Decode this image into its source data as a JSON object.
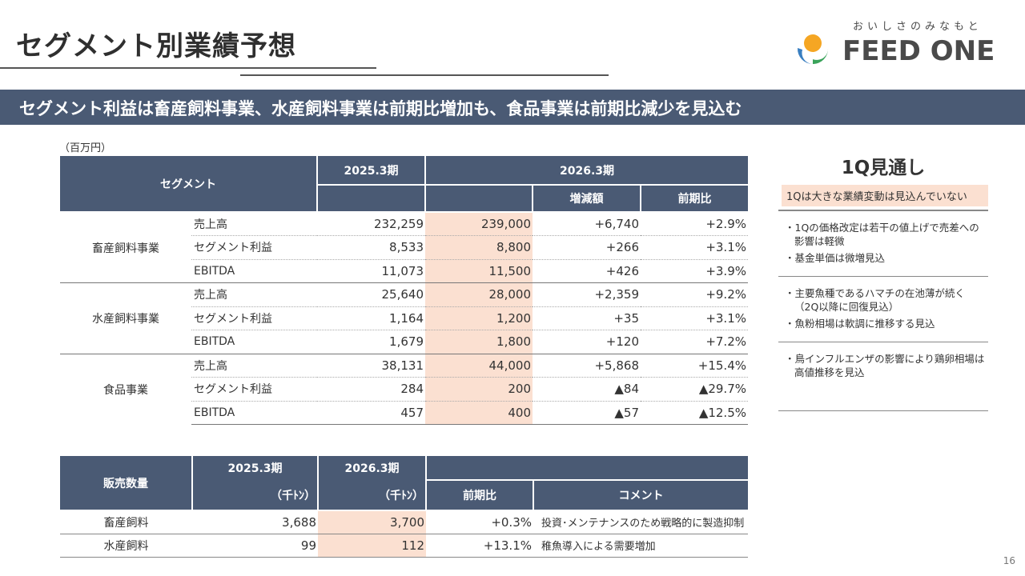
{
  "header": {
    "title": "セグメント別業績予想",
    "logo_tagline": "おいしさのみなもと",
    "logo_text": "FEED ONE",
    "logo_colors": {
      "orange": "#f5a623",
      "blue": "#3a7fc1",
      "green": "#3aa35a"
    }
  },
  "banner": {
    "text": "セグメント利益は畜産飼料事業、水産飼料事業は前期比増加も、食品事業は前期比減少を見込む"
  },
  "unit_label": "（百万円）",
  "main_table": {
    "headers": {
      "segment": "セグメント",
      "fy2025": "2025.3期",
      "fy2026": "2026.3期",
      "change": "増減額",
      "yoy": "前期比"
    },
    "groups": [
      {
        "segment": "畜産飼料事業",
        "rows": [
          {
            "metric": "売上高",
            "fy2025": "232,259",
            "fy2026": "239,000",
            "change": "+6,740",
            "yoy": "+2.9%"
          },
          {
            "metric": "セグメント利益",
            "fy2025": "8,533",
            "fy2026": "8,800",
            "change": "+266",
            "yoy": "+3.1%"
          },
          {
            "metric": "EBITDA",
            "fy2025": "11,073",
            "fy2026": "11,500",
            "change": "+426",
            "yoy": "+3.9%"
          }
        ]
      },
      {
        "segment": "水産飼料事業",
        "rows": [
          {
            "metric": "売上高",
            "fy2025": "25,640",
            "fy2026": "28,000",
            "change": "+2,359",
            "yoy": "+9.2%"
          },
          {
            "metric": "セグメント利益",
            "fy2025": "1,164",
            "fy2026": "1,200",
            "change": "+35",
            "yoy": "+3.1%"
          },
          {
            "metric": "EBITDA",
            "fy2025": "1,679",
            "fy2026": "1,800",
            "change": "+120",
            "yoy": "+7.2%"
          }
        ]
      },
      {
        "segment": "食品事業",
        "rows": [
          {
            "metric": "売上高",
            "fy2025": "38,131",
            "fy2026": "44,000",
            "change": "+5,868",
            "yoy": "+15.4%"
          },
          {
            "metric": "セグメント利益",
            "fy2025": "284",
            "fy2026": "200",
            "change": "▲84",
            "yoy": "▲29.7%"
          },
          {
            "metric": "EBITDA",
            "fy2025": "457",
            "fy2026": "400",
            "change": "▲57",
            "yoy": "▲12.5%"
          }
        ]
      }
    ]
  },
  "sales_table": {
    "headers": {
      "label": "販売数量",
      "fy2025": "2025.3期",
      "fy2026": "2026.3期",
      "unit_2025": "（千ﾄﾝ）",
      "unit_2026": "（千ﾄﾝ）",
      "yoy": "前期比",
      "comment": "コメント"
    },
    "rows": [
      {
        "name": "畜産飼料",
        "fy2025": "3,688",
        "fy2026": "3,700",
        "yoy": "+0.3%",
        "comment": "投資･メンテナンスのため戦略的に製造抑制"
      },
      {
        "name": "水産飼料",
        "fy2025": "99",
        "fy2026": "112",
        "yoy": "+13.1%",
        "comment": "稚魚導入による需要増加"
      }
    ]
  },
  "outlook": {
    "title": "1Q見通し",
    "subtitle": "1Qは大きな業績変動は見込んでいない",
    "blocks": [
      {
        "items": [
          "・1Qの価格改定は若干の値上げで売差への影響は軽微",
          "・基金単価は微増見込"
        ]
      },
      {
        "items": [
          "・主要魚種であるハマチの在池薄が続く（2Q以降に回復見込）",
          "・魚粉相場は軟調に推移する見込"
        ]
      },
      {
        "items": [
          "・鳥インフルエンザの影響により鶏卵相場は高値推移を見込"
        ]
      }
    ]
  },
  "page_number": "16"
}
